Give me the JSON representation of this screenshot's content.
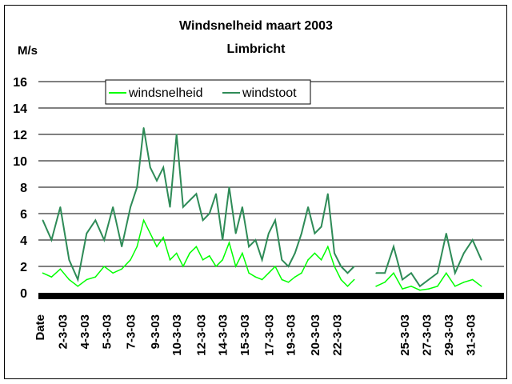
{
  "chart_data": {
    "type": "line",
    "title": "Windsnelheid maart 2003",
    "subtitle": "Limbricht",
    "ylabel": "M/s",
    "ylim": [
      0,
      16
    ],
    "yticks": [
      0,
      2,
      4,
      6,
      8,
      10,
      12,
      14,
      16
    ],
    "grid": true,
    "legend_position": "top-left",
    "xlim": [
      1,
      32
    ],
    "x_tick_labels": [
      {
        "label": "Date",
        "day": 1.25
      },
      {
        "label": "2-3-03",
        "day": 2.3
      },
      {
        "label": "4-3-03",
        "day": 3.3
      },
      {
        "label": "5-3-03",
        "day": 4.3
      },
      {
        "label": "7-3-03",
        "day": 5.4
      },
      {
        "label": "9-3-03",
        "day": 6.5
      },
      {
        "label": "10-3-03",
        "day": 7.5
      },
      {
        "label": "12-3-03",
        "day": 8.6
      },
      {
        "label": "14-3-03",
        "day": 9.6
      },
      {
        "label": "15-3-03",
        "day": 10.6
      },
      {
        "label": "17-3-03",
        "day": 11.7
      },
      {
        "label": "19-3-03",
        "day": 12.7
      },
      {
        "label": "20-3-03",
        "day": 13.8
      },
      {
        "label": "22-3-03",
        "day": 14.8
      },
      {
        "label": "25-3-03",
        "day": 17.9
      },
      {
        "label": "27-3-03",
        "day": 18.9
      },
      {
        "label": "29-3-03",
        "day": 19.9
      },
      {
        "label": "31-3-03",
        "day": 20.9
      }
    ],
    "series": [
      {
        "name": "windsnelheid",
        "color": "#00ff00",
        "x": [
          1.2,
          1.6,
          2.0,
          2.4,
          2.8,
          3.2,
          3.6,
          4.0,
          4.4,
          4.8,
          5.2,
          5.5,
          5.8,
          6.1,
          6.4,
          6.7,
          7.0,
          7.3,
          7.6,
          7.9,
          8.2,
          8.5,
          8.8,
          9.1,
          9.4,
          9.7,
          10.0,
          10.3,
          10.6,
          10.9,
          11.2,
          11.5,
          11.8,
          12.1,
          12.4,
          12.7,
          13.0,
          13.3,
          13.6,
          13.9,
          14.2,
          14.5,
          14.8,
          15.1,
          15.4,
          16.4,
          16.8,
          17.2,
          17.6,
          18.0,
          18.4,
          18.8,
          19.2,
          19.6,
          20.0,
          20.4,
          20.8,
          21.2
        ],
        "values": [
          1.5,
          1.2,
          1.8,
          1.0,
          0.5,
          1.0,
          1.2,
          2.0,
          1.5,
          1.8,
          2.5,
          3.5,
          5.5,
          4.5,
          3.5,
          4.2,
          2.5,
          3.0,
          2.0,
          3.0,
          3.5,
          2.5,
          2.8,
          2.0,
          2.5,
          3.8,
          2.0,
          3.0,
          1.5,
          1.2,
          1.0,
          1.5,
          2.0,
          1.0,
          0.8,
          1.2,
          1.5,
          2.5,
          3.0,
          2.5,
          3.5,
          2.0,
          1.0,
          0.5,
          1.0,
          0.5,
          0.8,
          1.5,
          0.3,
          0.5,
          0.2,
          0.3,
          0.5,
          1.5,
          0.5,
          0.8,
          1.0,
          0.5
        ]
      },
      {
        "name": "windstoot",
        "color": "#2e8b57",
        "x": [
          1.2,
          1.6,
          2.0,
          2.4,
          2.8,
          3.2,
          3.6,
          4.0,
          4.4,
          4.8,
          5.2,
          5.5,
          5.8,
          6.1,
          6.4,
          6.7,
          7.0,
          7.3,
          7.6,
          7.9,
          8.2,
          8.5,
          8.8,
          9.1,
          9.4,
          9.7,
          10.0,
          10.3,
          10.6,
          10.9,
          11.2,
          11.5,
          11.8,
          12.1,
          12.4,
          12.7,
          13.0,
          13.3,
          13.6,
          13.9,
          14.2,
          14.5,
          14.8,
          15.1,
          15.4,
          16.4,
          16.8,
          17.2,
          17.6,
          18.0,
          18.4,
          18.8,
          19.2,
          19.6,
          20.0,
          20.4,
          20.8,
          21.2
        ],
        "values": [
          5.5,
          4.0,
          6.5,
          2.5,
          1.0,
          4.5,
          5.5,
          4.0,
          6.5,
          3.5,
          6.5,
          8.0,
          12.5,
          9.5,
          8.5,
          9.5,
          6.5,
          12.0,
          6.5,
          7.0,
          7.5,
          5.5,
          6.0,
          7.5,
          4.0,
          8.0,
          4.5,
          6.5,
          3.5,
          4.0,
          2.5,
          4.5,
          5.5,
          2.5,
          2.0,
          3.0,
          4.5,
          6.5,
          4.5,
          5.0,
          7.5,
          3.0,
          2.0,
          1.5,
          2.0,
          1.5,
          1.5,
          3.5,
          1.0,
          1.5,
          0.5,
          1.0,
          1.5,
          4.5,
          1.5,
          3.0,
          4.0,
          2.5
        ]
      }
    ]
  }
}
